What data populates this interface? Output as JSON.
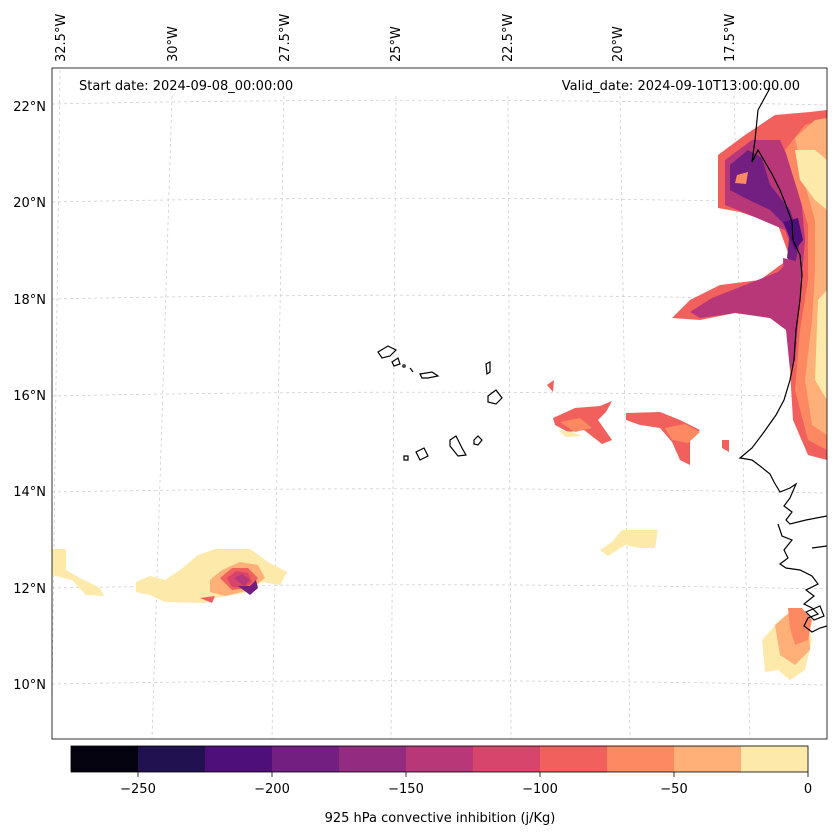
{
  "map": {
    "start_label": "Start date: 2024-09-08_00:00:00",
    "valid_label": "Valid_date: 2024-09-10T13:00:00.00",
    "lon_labels": [
      "32.5°W",
      "30°W",
      "27.5°W",
      "25°W",
      "22.5°W",
      "20°W",
      "17.5°W"
    ],
    "lat_labels": [
      "22°N",
      "20°N",
      "18°N",
      "16°N",
      "14°N",
      "12°N",
      "10°N"
    ]
  },
  "colorbar": {
    "title": "925 hPa convective inhibition (j/Kg)",
    "ticks": [
      "−250",
      "−200",
      "−150",
      "−100",
      "−50",
      "0"
    ],
    "colors": [
      "#05030f",
      "#221150",
      "#4f0f7b",
      "#721f81",
      "#932b80",
      "#b73779",
      "#d8456c",
      "#f1605d",
      "#fc8961",
      "#feb078",
      "#fde9a9"
    ]
  }
}
